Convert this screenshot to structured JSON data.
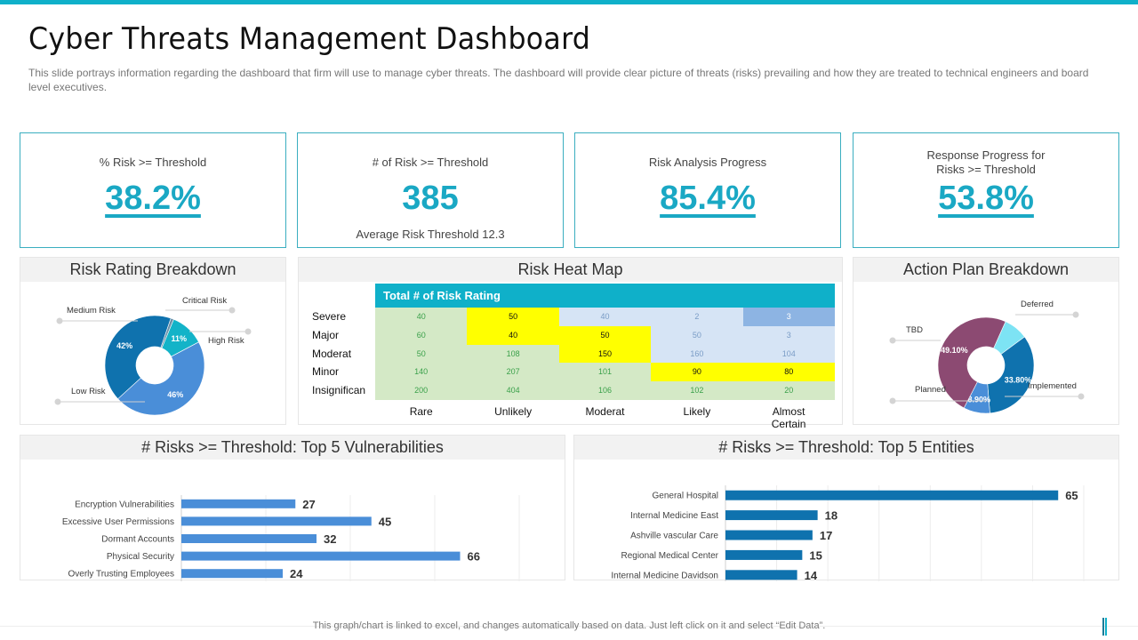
{
  "header": {
    "title": "Cyber Threats Management Dashboard",
    "subtitle": "This slide portrays information  regarding the dashboard  that firm will use to manage  cyber threats. The dashboard  will provide  clear picture of threats (risks) prevailing  and how they are treated to technical engineers and board  level  executives."
  },
  "colors": {
    "accent": "#0fb0c9",
    "kpi_value": "#1aa8c4",
    "bar_vuln": "#4a8ed8",
    "bar_entity": "#0f72ae",
    "heat_green": "#d4e9c6",
    "heat_yellow": "#ffff00",
    "heat_lightblue": "#d6e4f5",
    "heat_blue": "#8db4e3"
  },
  "kpis": [
    {
      "label": "% Risk >= Threshold",
      "value": "38.2%",
      "sub": ""
    },
    {
      "label": "# of Risk >= Threshold",
      "value": "385",
      "sub": "Average  Risk Threshold  12.3"
    },
    {
      "label": "Risk Analysis Progress",
      "value": "85.4%",
      "sub": ""
    },
    {
      "label_line1": "Response Progress for",
      "label_line2": "Risks >= Threshold",
      "value": "53.8%",
      "sub": ""
    }
  ],
  "panels": {
    "risk_rating": "Risk Rating Breakdown",
    "heat_map": "Risk Heat Map",
    "action_plan": "Action Plan Breakdown",
    "vulnerabilities": "# Risks >= Threshold: Top 5 Vulnerabilities",
    "entities": "# Risks >= Threshold: Top 5 Entities"
  },
  "footer": {
    "note": "This graph/chart is linked to excel,  and changes automatically based on data. Just left click on it and select “Edit Data”."
  },
  "chart_data": [
    {
      "id": "risk_rating",
      "type": "pie",
      "variant": "donut",
      "title": "Risk Rating Breakdown",
      "slices": [
        {
          "label": "Critical Risk",
          "value": 1,
          "display": "",
          "color": "#6b8fa8"
        },
        {
          "label": "High Risk",
          "value": 11,
          "display": "11%",
          "color": "#13b3c8"
        },
        {
          "label": "Low Risk",
          "value": 46,
          "display": "46%",
          "color": "#4a8ed8"
        },
        {
          "label": "Medium Risk",
          "value": 42,
          "display": "42%",
          "color": "#0f72ae"
        }
      ]
    },
    {
      "id": "heat_map",
      "type": "heatmap",
      "title": "Risk Heat Map",
      "header": "Total # of Risk Rating",
      "rows": [
        "Severe",
        "Major",
        "Moderat",
        "Minor",
        "Insignifican"
      ],
      "columns": [
        "Rare",
        "Unlikely",
        "Moderat",
        "Likely",
        "Almost Certain"
      ],
      "values": [
        [
          40,
          50,
          40,
          2,
          3
        ],
        [
          60,
          40,
          50,
          50,
          3
        ],
        [
          50,
          108,
          150,
          160,
          104
        ],
        [
          140,
          207,
          101,
          90,
          80
        ],
        [
          200,
          404,
          106,
          102,
          20
        ]
      ],
      "cell_colors": [
        [
          "green",
          "yellow",
          "lightblue",
          "lightblue",
          "blue"
        ],
        [
          "green",
          "yellow",
          "yellow",
          "lightblue",
          "lightblue"
        ],
        [
          "green",
          "green",
          "yellow",
          "lightblue",
          "lightblue"
        ],
        [
          "green",
          "green",
          "green",
          "yellow",
          "yellow"
        ],
        [
          "green",
          "green",
          "green",
          "green",
          "green"
        ]
      ]
    },
    {
      "id": "action_plan",
      "type": "pie",
      "variant": "donut",
      "title": "Action Plan Breakdown",
      "slices": [
        {
          "label": "Deferred",
          "value": 8.2,
          "display": "",
          "color": "#7de3f4"
        },
        {
          "label": "Implemented",
          "value": 33.8,
          "display": "33.80%",
          "color": "#0f72ae"
        },
        {
          "label": "Planned",
          "value": 8.9,
          "display": "8.90%",
          "color": "#4a8ed8"
        },
        {
          "label": "TBD",
          "value": 49.1,
          "display": "49.10%",
          "color": "#8c4a72"
        }
      ]
    },
    {
      "id": "vulnerabilities",
      "type": "bar",
      "orientation": "horizontal",
      "title": "# Risks >= Threshold: Top 5 Vulnerabilities",
      "categories": [
        "Encryption Vulnerabilities",
        "Excessive User Permissions",
        "Dormant Accounts",
        "Physical Security",
        "Overly Trusting Employees"
      ],
      "values": [
        27,
        45,
        32,
        66,
        24
      ],
      "xlim": [
        0,
        80
      ],
      "xticks": [
        "-",
        "20",
        "40",
        "60",
        "80"
      ],
      "grid": true
    },
    {
      "id": "entities",
      "type": "bar",
      "orientation": "horizontal",
      "title": "# Risks >= Threshold: Top 5 Entities",
      "categories": [
        "General Hospital",
        "Internal Medicine East",
        "Ashville vascular Care",
        "Regional Medical Center",
        "Internal Medicine Davidson"
      ],
      "values": [
        65,
        18,
        17,
        15,
        14
      ],
      "xlim": [
        0,
        70
      ],
      "xticks": [
        "-",
        "10",
        "20",
        "30",
        "40",
        "50",
        "60",
        "70"
      ],
      "grid": true
    }
  ]
}
